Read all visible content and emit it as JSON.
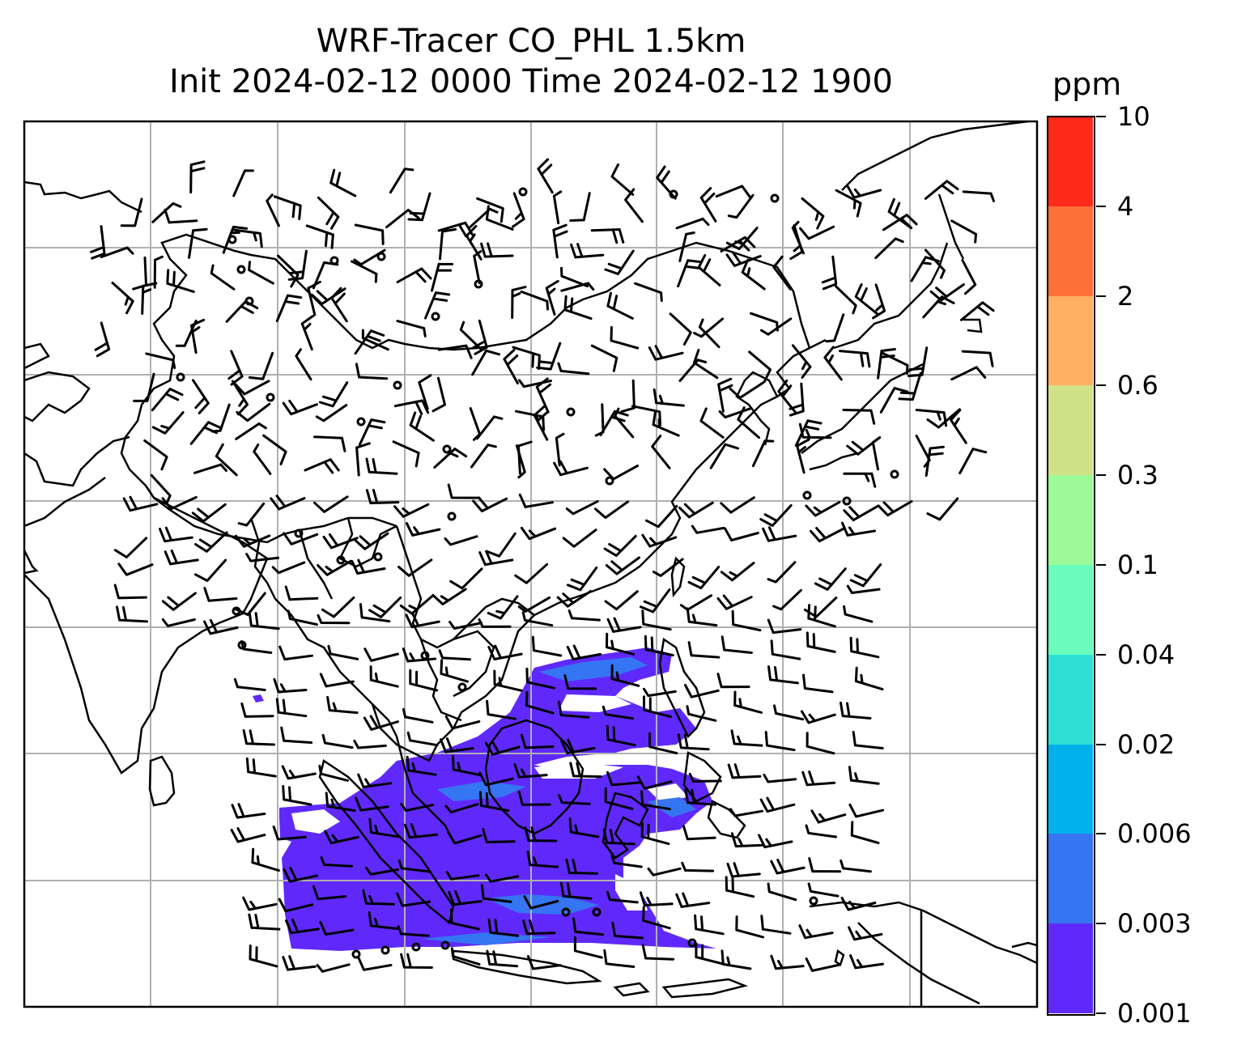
{
  "title": {
    "line1": "WRF-Tracer CO_PHL 1.5km",
    "line2": "Init 2024-02-12 0000 Time 2024-02-12 1900"
  },
  "colorbar": {
    "unit": "ppm",
    "levels": [
      "0.001",
      "0.003",
      "0.006",
      "0.02",
      "0.04",
      "0.1",
      "0.3",
      "0.6",
      "2",
      "4",
      "10"
    ],
    "colors": [
      "#6029fb",
      "#3574f2",
      "#01b1ec",
      "#2edfd6",
      "#69fcbc",
      "#9cfa98",
      "#d0e187",
      "#ffb060",
      "#ff7039",
      "#ff2a19"
    ]
  },
  "map": {
    "gridlines": "on",
    "barb_icon": "wind-barb-icon",
    "calm_icon": "calm-circle-icon",
    "tracer_fill_color": "#6029fb",
    "tracer_core_color": "#3574f2"
  }
}
